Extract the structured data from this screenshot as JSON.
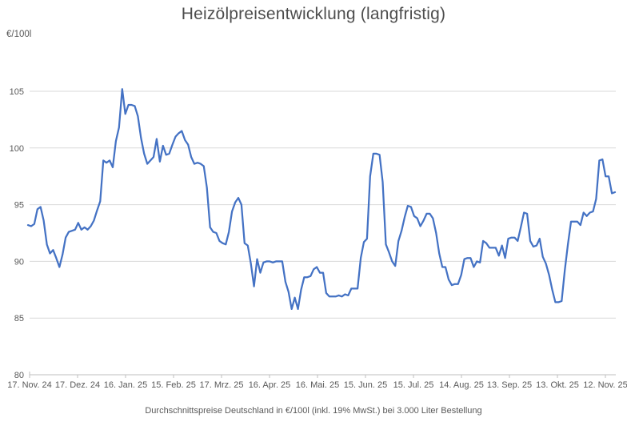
{
  "title": "Heizölpreisentwicklung (langfristig)",
  "y_unit_label": "€/100l",
  "footer": "Durchschnittspreise Deutschland in €/100l (inkl. 19% MwSt.) bei 3.000 Liter Bestellung",
  "colors": {
    "line": "#4472C4",
    "grid": "#D9D9D9",
    "axis": "#BFBFBF",
    "tick_text": "#595959",
    "title_text": "#4d4d4d",
    "background": "#ffffff"
  },
  "chart_data": {
    "type": "line",
    "title": "Heizölpreisentwicklung (langfristig)",
    "xlabel": "",
    "ylabel": "€/100l",
    "ylim": [
      80,
      105
    ],
    "yticks": [
      80,
      85,
      90,
      95,
      100,
      105
    ],
    "grid": "horizontal",
    "legend_position": "none",
    "x_tick_labels": [
      "17. Nov. 24",
      "17. Dez. 24",
      "16. Jan. 25",
      "15. Feb. 25",
      "17. Mrz. 25",
      "16. Apr. 25",
      "16. Mai. 25",
      "15. Jun. 25",
      "15. Jul. 25",
      "14. Aug. 25",
      "13. Sep. 25",
      "13. Okt. 25",
      "12. Nov. 25"
    ],
    "x_tick_interval_days": 30,
    "sampling_note": "average heating-oil price, sampled approx. every 2 days from 17. Nov. 24 onward",
    "series": [
      {
        "name": "Heizölpreis €/100l",
        "color": "#4472C4",
        "values": [
          93.2,
          93.1,
          93.3,
          94.6,
          94.8,
          93.6,
          91.5,
          90.7,
          91.0,
          90.3,
          89.5,
          90.6,
          92.1,
          92.6,
          92.7,
          92.8,
          93.4,
          92.8,
          93.0,
          92.8,
          93.1,
          93.6,
          94.5,
          95.3,
          98.9,
          98.7,
          98.9,
          98.3,
          100.6,
          101.8,
          105.2,
          103.0,
          103.8,
          103.8,
          103.7,
          102.8,
          100.9,
          99.5,
          98.6,
          98.9,
          99.2,
          100.8,
          98.8,
          100.2,
          99.4,
          99.5,
          100.3,
          101.0,
          101.3,
          101.5,
          100.7,
          100.3,
          99.2,
          98.6,
          98.7,
          98.6,
          98.4,
          96.5,
          93.0,
          92.6,
          92.5,
          91.8,
          91.6,
          91.5,
          92.6,
          94.4,
          95.2,
          95.6,
          95.0,
          91.6,
          91.4,
          89.8,
          87.8,
          90.2,
          89.0,
          89.9,
          90.0,
          90.0,
          89.9,
          90.0,
          90.0,
          90.0,
          88.2,
          87.3,
          85.8,
          86.8,
          85.8,
          87.5,
          88.6,
          88.6,
          88.7,
          89.3,
          89.5,
          89.0,
          89.0,
          87.2,
          86.9,
          86.9,
          86.9,
          87.0,
          86.9,
          87.1,
          87.0,
          87.6,
          87.6,
          87.6,
          90.3,
          91.7,
          92.0,
          97.5,
          99.5,
          99.5,
          99.4,
          97.0,
          91.5,
          90.8,
          90.0,
          89.6,
          91.8,
          92.7,
          93.9,
          94.9,
          94.8,
          94.0,
          93.8,
          93.1,
          93.6,
          94.2,
          94.2,
          93.8,
          92.5,
          90.7,
          89.5,
          89.5,
          88.4,
          87.9,
          88.0,
          88.0,
          88.8,
          90.2,
          90.3,
          90.3,
          89.5,
          90.0,
          89.9,
          91.8,
          91.6,
          91.2,
          91.2,
          91.2,
          90.5,
          91.4,
          90.3,
          92.0,
          92.1,
          92.1,
          91.8,
          93.0,
          94.3,
          94.2,
          91.8,
          91.3,
          91.4,
          92.0,
          90.4,
          89.8,
          88.8,
          87.5,
          86.4,
          86.4,
          86.5,
          89.2,
          91.5,
          93.5,
          93.5,
          93.5,
          93.2,
          94.3,
          94.0,
          94.3,
          94.4,
          95.5,
          98.9,
          99.0,
          97.5,
          97.5,
          96.0,
          96.1
        ]
      }
    ]
  }
}
